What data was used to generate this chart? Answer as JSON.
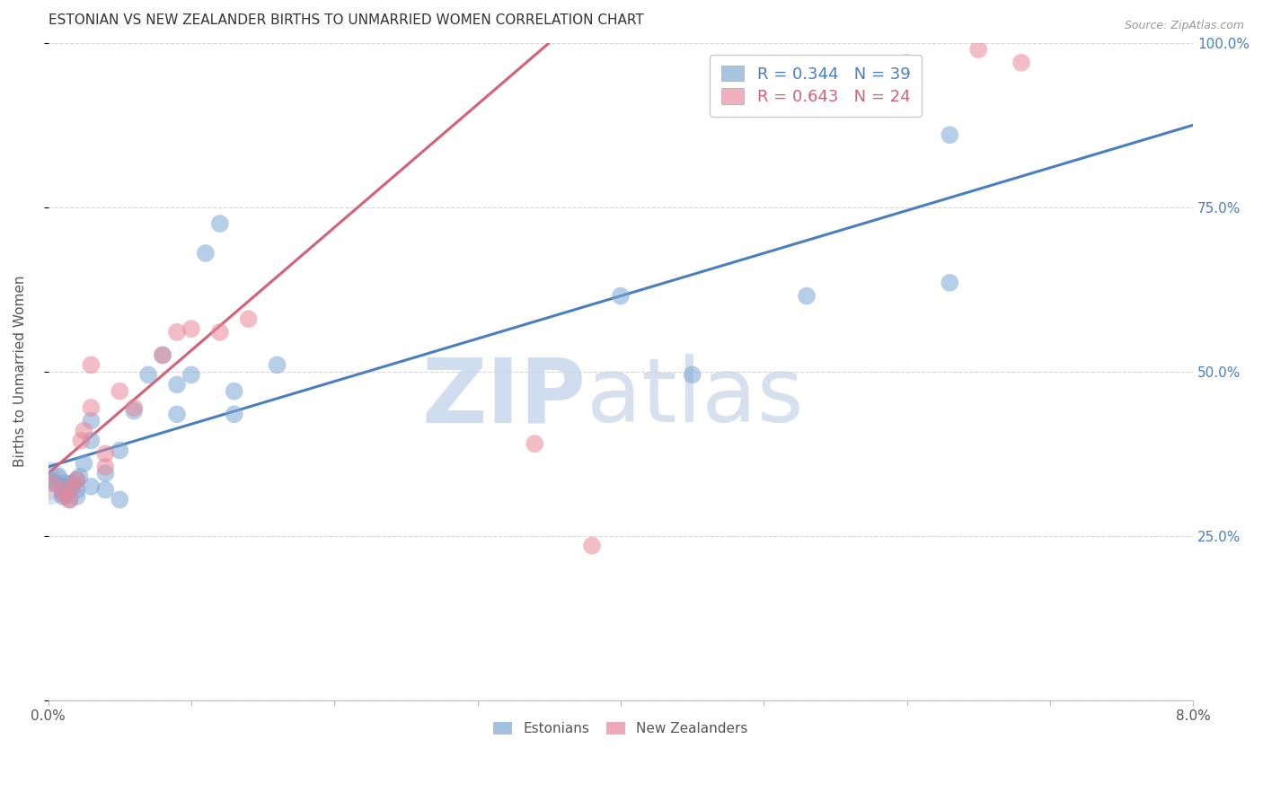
{
  "title": "ESTONIAN VS NEW ZEALANDER BIRTHS TO UNMARRIED WOMEN CORRELATION CHART",
  "source": "Source: ZipAtlas.com",
  "ylabel": "Births to Unmarried Women",
  "watermark_zip": "ZIP",
  "watermark_atlas": "atlas",
  "xlim": [
    0.0,
    0.08
  ],
  "ylim": [
    0.0,
    1.0
  ],
  "xtick_positions": [
    0.0,
    0.01,
    0.02,
    0.03,
    0.04,
    0.05,
    0.06,
    0.07,
    0.08
  ],
  "xticklabels": [
    "0.0%",
    "",
    "",
    "",
    "",
    "",
    "",
    "",
    "8.0%"
  ],
  "ytick_positions": [
    0.0,
    0.25,
    0.5,
    0.75,
    1.0
  ],
  "yticklabels_right": [
    "",
    "25.0%",
    "50.0%",
    "75.0%",
    "100.0%"
  ],
  "blue_scatter_color": "#7BA7D4",
  "pink_scatter_color": "#E8879A",
  "blue_line_color": "#4A7FBF",
  "pink_line_color": "#D4607A",
  "legend_blue_fill": "#A8C4E0",
  "legend_pink_fill": "#F0B0BE",
  "R_blue": 0.344,
  "N_blue": 39,
  "R_pink": 0.643,
  "N_pink": 24,
  "blue_line_x0": 0.0,
  "blue_line_y0": 0.355,
  "blue_line_x1": 0.08,
  "blue_line_y1": 0.875,
  "pink_line_x0": 0.0,
  "pink_line_y0": 0.345,
  "pink_line_x1": 0.035,
  "pink_line_y1": 1.0,
  "blue_points": [
    [
      0.0002,
      0.335
    ],
    [
      0.0005,
      0.33
    ],
    [
      0.0007,
      0.34
    ],
    [
      0.001,
      0.325
    ],
    [
      0.001,
      0.315
    ],
    [
      0.001,
      0.31
    ],
    [
      0.0012,
      0.33
    ],
    [
      0.0013,
      0.315
    ],
    [
      0.0015,
      0.32
    ],
    [
      0.0015,
      0.305
    ],
    [
      0.0017,
      0.33
    ],
    [
      0.002,
      0.335
    ],
    [
      0.002,
      0.31
    ],
    [
      0.002,
      0.32
    ],
    [
      0.0022,
      0.34
    ],
    [
      0.0025,
      0.36
    ],
    [
      0.003,
      0.425
    ],
    [
      0.003,
      0.395
    ],
    [
      0.003,
      0.325
    ],
    [
      0.004,
      0.345
    ],
    [
      0.004,
      0.32
    ],
    [
      0.005,
      0.38
    ],
    [
      0.005,
      0.305
    ],
    [
      0.006,
      0.44
    ],
    [
      0.007,
      0.495
    ],
    [
      0.008,
      0.525
    ],
    [
      0.009,
      0.48
    ],
    [
      0.009,
      0.435
    ],
    [
      0.01,
      0.495
    ],
    [
      0.011,
      0.68
    ],
    [
      0.012,
      0.725
    ],
    [
      0.013,
      0.47
    ],
    [
      0.013,
      0.435
    ],
    [
      0.016,
      0.51
    ],
    [
      0.04,
      0.615
    ],
    [
      0.045,
      0.495
    ],
    [
      0.053,
      0.615
    ],
    [
      0.063,
      0.635
    ],
    [
      0.063,
      0.86
    ]
  ],
  "pink_points": [
    [
      0.0003,
      0.33
    ],
    [
      0.001,
      0.32
    ],
    [
      0.0012,
      0.31
    ],
    [
      0.0015,
      0.305
    ],
    [
      0.0017,
      0.325
    ],
    [
      0.002,
      0.335
    ],
    [
      0.0023,
      0.395
    ],
    [
      0.0025,
      0.41
    ],
    [
      0.003,
      0.445
    ],
    [
      0.003,
      0.51
    ],
    [
      0.004,
      0.375
    ],
    [
      0.004,
      0.355
    ],
    [
      0.005,
      0.47
    ],
    [
      0.006,
      0.445
    ],
    [
      0.008,
      0.525
    ],
    [
      0.009,
      0.56
    ],
    [
      0.01,
      0.565
    ],
    [
      0.012,
      0.56
    ],
    [
      0.014,
      0.58
    ],
    [
      0.034,
      0.39
    ],
    [
      0.038,
      0.235
    ],
    [
      0.06,
      0.97
    ],
    [
      0.065,
      0.99
    ],
    [
      0.068,
      0.97
    ]
  ],
  "large_blue_point": [
    0.0,
    0.33
  ],
  "large_blue_size": 1200,
  "large_pink_point": [
    0.0,
    0.33
  ],
  "large_pink_size": 700,
  "bg_color": "#FFFFFF",
  "grid_color": "#CCCCCC",
  "title_color": "#333333",
  "right_tick_color": "#4A7FBF",
  "source_color": "#999999",
  "ylabel_color": "#555555"
}
